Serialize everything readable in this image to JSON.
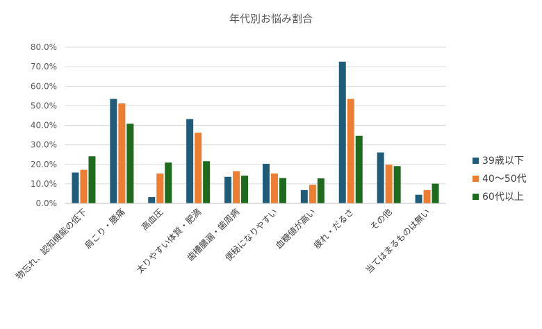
{
  "chart_data": {
    "type": "bar",
    "title": "年代別お悩み割合",
    "categories": [
      "物忘れ、認知機能の低下",
      "肩こり・腰痛",
      "高血圧",
      "太りやすい体質・肥満",
      "歯槽膿漏・歯周病",
      "便秘になりやすい",
      "血糖値が高い",
      "疲れ・だるさ",
      "その他",
      "当てはまるものは無い"
    ],
    "series": [
      {
        "name": "39歳以下",
        "color": "#1f5c7a",
        "values": [
          15.8,
          53.5,
          3.2,
          43.2,
          13.6,
          20.3,
          6.8,
          72.6,
          26.1,
          4.4
        ]
      },
      {
        "name": "40～50代",
        "color": "#ed7d31",
        "values": [
          17.2,
          51.2,
          15.3,
          36.2,
          16.5,
          15.3,
          9.5,
          53.5,
          19.8,
          6.8
        ]
      },
      {
        "name": "60代以上",
        "color": "#1e6b1e",
        "values": [
          24.1,
          40.8,
          20.9,
          21.6,
          14.2,
          13.0,
          12.8,
          34.6,
          19.1,
          10.1
        ]
      }
    ],
    "ylim": [
      0,
      80
    ],
    "y_ticks": [
      "0.0%",
      "10.0%",
      "20.0%",
      "30.0%",
      "40.0%",
      "50.0%",
      "60.0%",
      "70.0%",
      "80.0%"
    ],
    "grid": true,
    "legend_position": "right"
  }
}
